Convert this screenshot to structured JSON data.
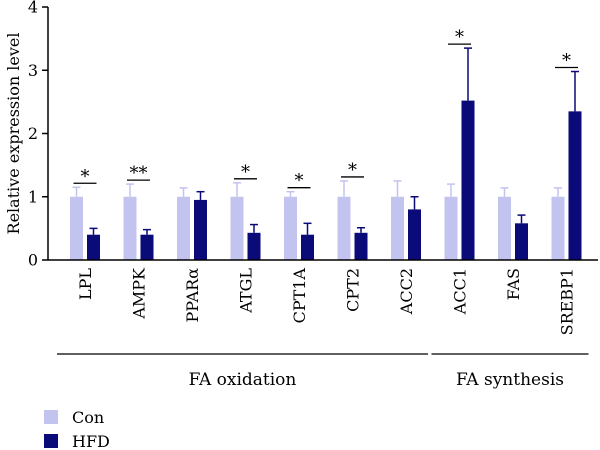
{
  "chart_data": {
    "type": "bar",
    "ylabel": "Relative expression level",
    "ylim": [
      0,
      4
    ],
    "yticks": [
      "0",
      "1",
      "2",
      "3",
      "4"
    ],
    "categories": [
      "LPL",
      "AMPK",
      "PPARα",
      "ATGL",
      "CPT1A",
      "CPT2",
      "ACC2",
      "ACC1",
      "FAS",
      "SREBP1"
    ],
    "series": [
      {
        "name": "Con",
        "color": "#c3c3f0",
        "values": [
          1.0,
          1.0,
          1.0,
          1.0,
          1.0,
          1.0,
          1.0,
          1.0,
          1.0,
          1.0
        ],
        "errors": [
          0.15,
          0.2,
          0.14,
          0.22,
          0.08,
          0.25,
          0.25,
          0.2,
          0.14,
          0.14
        ]
      },
      {
        "name": "HFD",
        "color": "#0a0a78",
        "values": [
          0.4,
          0.4,
          0.95,
          0.43,
          0.4,
          0.43,
          0.8,
          2.52,
          0.58,
          2.35
        ],
        "errors": [
          0.1,
          0.08,
          0.13,
          0.13,
          0.18,
          0.08,
          0.2,
          0.83,
          0.13,
          0.63
        ]
      }
    ],
    "significance": [
      {
        "index": 0,
        "label": "*"
      },
      {
        "index": 1,
        "label": "**"
      },
      {
        "index": 3,
        "label": "*"
      },
      {
        "index": 4,
        "label": "*"
      },
      {
        "index": 5,
        "label": "*"
      },
      {
        "index": 7,
        "label": "*"
      },
      {
        "index": 9,
        "label": "*"
      }
    ],
    "groups": [
      {
        "label": "FA oxidation",
        "from": 0,
        "to": 6
      },
      {
        "label": "FA synthesis",
        "from": 7,
        "to": 9
      }
    ],
    "legend": [
      {
        "label": "Con",
        "color": "#c3c3f0"
      },
      {
        "label": "HFD",
        "color": "#0a0a78"
      }
    ],
    "legend_position": "bottom-left"
  }
}
